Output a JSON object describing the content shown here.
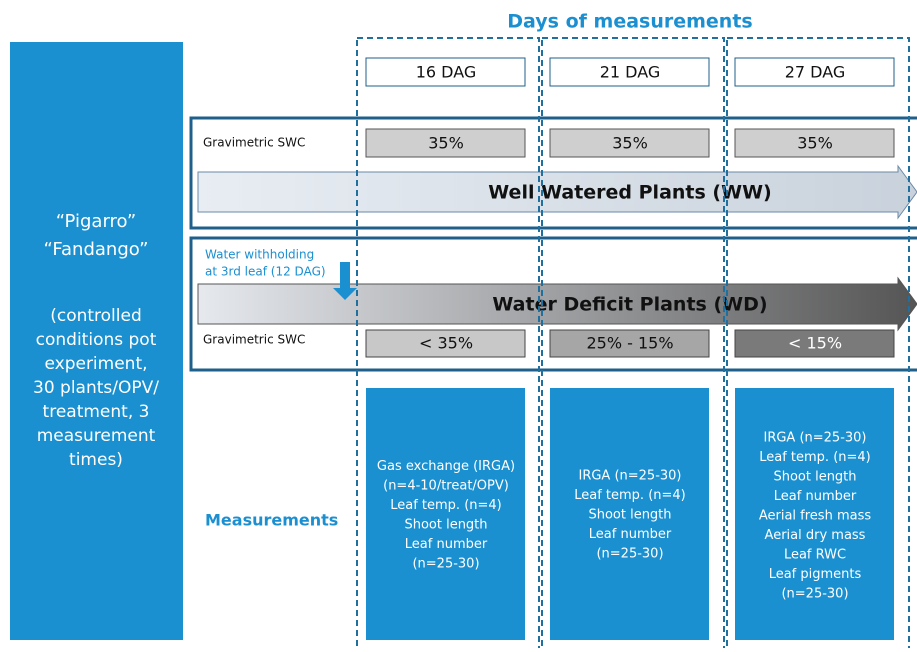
{
  "header": {
    "title": "Days of measurements"
  },
  "samples": {
    "cultivars": [
      "“Pigarro”",
      "“Fandango”"
    ],
    "description": [
      "(controlled",
      "conditions pot",
      "experiment,",
      "30 plants/OPV/",
      "treatment, 3",
      "measurement",
      "times)"
    ]
  },
  "ww": {
    "label": "Well Watered Plants (WW)",
    "swc_label": "Gravimetric SWC"
  },
  "wd": {
    "label": "Water Deficit Plants (WD)",
    "swc_label": "Gravimetric SWC",
    "withholding": [
      "Water withholding",
      "at 3rd leaf (12 DAG)"
    ]
  },
  "measurements_label": "Measurements",
  "columns": [
    {
      "day": "16 DAG",
      "ww_swc": "35%",
      "wd_swc": "< 35%",
      "measurements": [
        "Gas exchange (IRGA)",
        "(n=4-10/treat/OPV)",
        "Leaf temp. (n=4)",
        "Shoot length",
        "Leaf number",
        "(n=25-30)"
      ]
    },
    {
      "day": "21 DAG",
      "ww_swc": "35%",
      "wd_swc": "25% - 15%",
      "measurements": [
        "IRGA (n=25-30)",
        "Leaf temp. (n=4)",
        "Shoot length",
        "Leaf number",
        "(n=25-30)"
      ]
    },
    {
      "day": "27 DAG",
      "ww_swc": "35%",
      "wd_swc": "< 15%",
      "measurements": [
        "IRGA (n=25-30)",
        "Leaf temp. (n=4)",
        "Shoot length",
        "Leaf number",
        "Aerial fresh mass",
        "Aerial dry mass",
        "Leaf RWC",
        "Leaf pigments",
        "(n=25-30)"
      ]
    }
  ]
}
